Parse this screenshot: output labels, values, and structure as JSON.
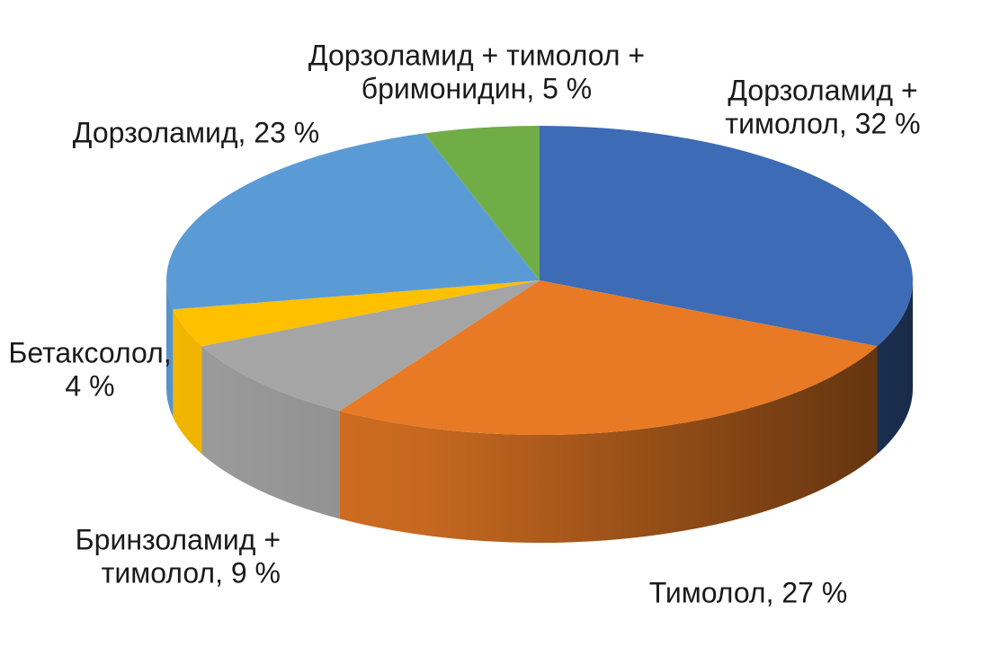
{
  "chart_data": {
    "type": "pie",
    "labels": [
      [
        "Дорзоламид +",
        "тимолол, 32 %"
      ],
      [
        "Тимолол, 27 %"
      ],
      [
        "Бринзоламид +",
        "тимолол, 9 %"
      ],
      [
        "Бетаксолол,",
        "4 %"
      ],
      [
        "Дорзоламид, 23 %"
      ],
      [
        "Дорзоламид + тимолол +",
        "бримонидин, 5 %"
      ]
    ],
    "values": [
      32,
      27,
      9,
      4,
      23,
      5
    ],
    "colors": [
      "#3d6bb5",
      "#e87a25",
      "#a5a5a5",
      "#ffc000",
      "#5b9bd5",
      "#70ad47"
    ]
  }
}
